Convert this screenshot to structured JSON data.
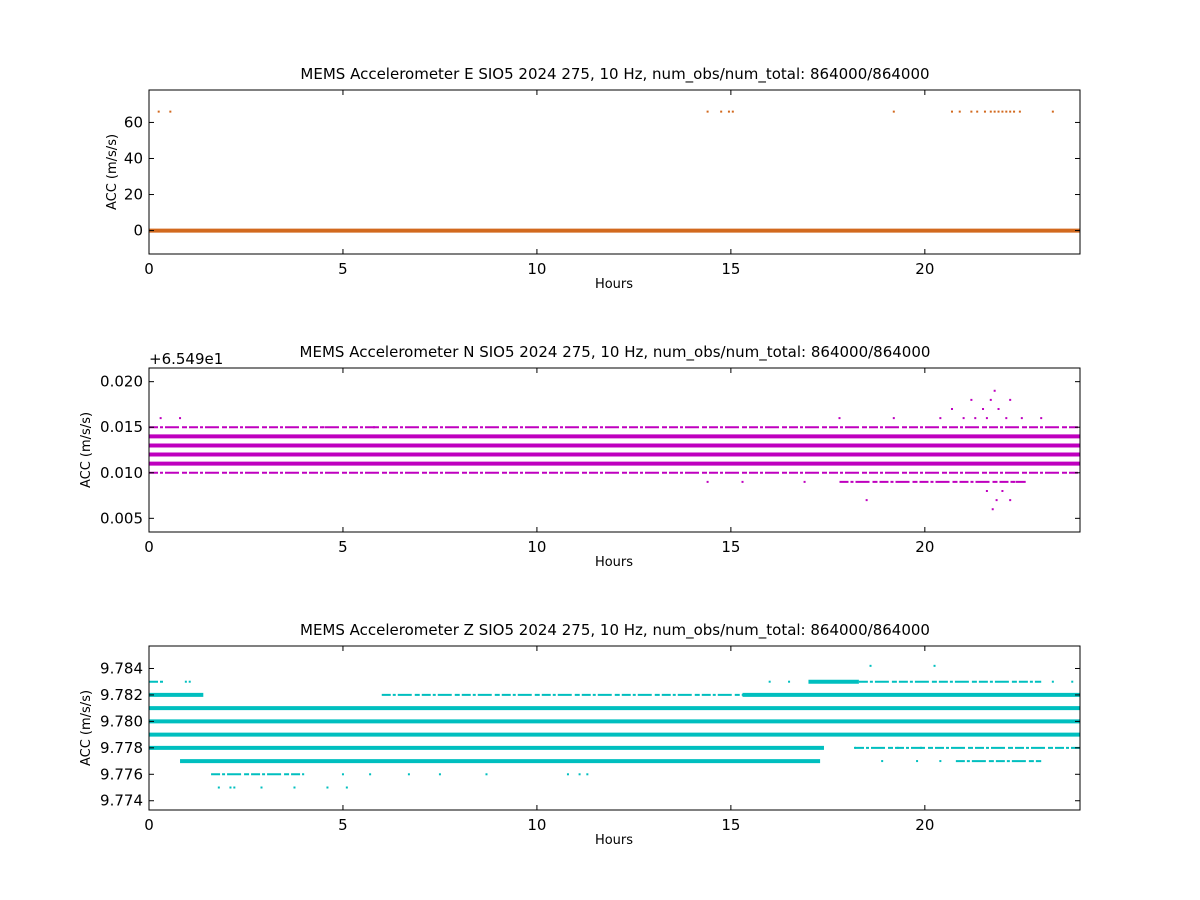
{
  "chart_data": [
    {
      "type": "scatter",
      "title": "MEMS Accelerometer E SIO5 2024 275, 10 Hz, num_obs/num_total: 864000/864000",
      "xlabel": "Hours",
      "ylabel": "ACC (m/s/s)",
      "xlim": [
        0,
        24
      ],
      "ylim": [
        -13,
        78
      ],
      "x_ticks": [
        0,
        5,
        10,
        15,
        20
      ],
      "y_ticks": [
        0,
        20,
        40,
        60
      ],
      "y_tick_labels": [
        "0",
        "20",
        "40",
        "60"
      ],
      "color": "#d2691e",
      "grid": false,
      "bands": [
        {
          "y": 0,
          "x_start": 0,
          "x_end": 24
        }
      ],
      "points": [
        {
          "x": 0.25,
          "y": 66
        },
        {
          "x": 0.55,
          "y": 66
        },
        {
          "x": 14.4,
          "y": 66
        },
        {
          "x": 14.75,
          "y": 66
        },
        {
          "x": 14.95,
          "y": 66
        },
        {
          "x": 15.05,
          "y": 66
        },
        {
          "x": 19.2,
          "y": 66
        },
        {
          "x": 20.7,
          "y": 66
        },
        {
          "x": 20.9,
          "y": 66
        },
        {
          "x": 21.2,
          "y": 66
        },
        {
          "x": 21.35,
          "y": 66
        },
        {
          "x": 21.55,
          "y": 66
        },
        {
          "x": 21.7,
          "y": 66
        },
        {
          "x": 21.8,
          "y": 66
        },
        {
          "x": 21.9,
          "y": 66
        },
        {
          "x": 22.0,
          "y": 66
        },
        {
          "x": 22.1,
          "y": 66
        },
        {
          "x": 22.2,
          "y": 66
        },
        {
          "x": 22.3,
          "y": 66
        },
        {
          "x": 22.45,
          "y": 66
        },
        {
          "x": 23.3,
          "y": 66
        }
      ]
    },
    {
      "type": "scatter",
      "title": "MEMS Accelerometer N SIO5 2024 275, 10 Hz, num_obs/num_total: 864000/864000",
      "xlabel": "Hours",
      "ylabel": "ACC (m/s/s)",
      "y_offset_label": "+6.549e1",
      "xlim": [
        0,
        24
      ],
      "ylim": [
        0.0035,
        0.0215
      ],
      "x_ticks": [
        0,
        5,
        10,
        15,
        20
      ],
      "y_ticks": [
        0.005,
        0.01,
        0.015,
        0.02
      ],
      "y_tick_labels": [
        "0.005",
        "0.010",
        "0.015",
        "0.020"
      ],
      "color": "#bf00bf",
      "grid": false,
      "bands": [
        {
          "y": 0.011,
          "x_start": 0,
          "x_end": 24
        },
        {
          "y": 0.012,
          "x_start": 0,
          "x_end": 24
        },
        {
          "y": 0.013,
          "x_start": 0,
          "x_end": 24
        },
        {
          "y": 0.014,
          "x_start": 0,
          "x_end": 24
        },
        {
          "y": 0.01,
          "x_start": 0,
          "x_end": 24,
          "dashed": true
        },
        {
          "y": 0.015,
          "x_start": 0,
          "x_end": 24,
          "dashed": true
        },
        {
          "y": 0.009,
          "x_start": 17.8,
          "x_end": 22.6,
          "dashed": true
        }
      ],
      "points": [
        {
          "x": 0.3,
          "y": 0.016
        },
        {
          "x": 0.8,
          "y": 0.016
        },
        {
          "x": 4.5,
          "y": 0.015
        },
        {
          "x": 5.8,
          "y": 0.015
        },
        {
          "x": 14.4,
          "y": 0.009
        },
        {
          "x": 15.3,
          "y": 0.009
        },
        {
          "x": 16.9,
          "y": 0.009
        },
        {
          "x": 17.8,
          "y": 0.016
        },
        {
          "x": 18.5,
          "y": 0.007
        },
        {
          "x": 19.2,
          "y": 0.016
        },
        {
          "x": 20.4,
          "y": 0.016
        },
        {
          "x": 20.7,
          "y": 0.017
        },
        {
          "x": 21.0,
          "y": 0.016
        },
        {
          "x": 21.2,
          "y": 0.018
        },
        {
          "x": 21.3,
          "y": 0.016
        },
        {
          "x": 21.5,
          "y": 0.017
        },
        {
          "x": 21.7,
          "y": 0.018
        },
        {
          "x": 21.75,
          "y": 0.006
        },
        {
          "x": 21.8,
          "y": 0.019
        },
        {
          "x": 21.85,
          "y": 0.007
        },
        {
          "x": 21.9,
          "y": 0.017
        },
        {
          "x": 22.0,
          "y": 0.008
        },
        {
          "x": 22.1,
          "y": 0.016
        },
        {
          "x": 22.2,
          "y": 0.018
        },
        {
          "x": 22.2,
          "y": 0.007
        },
        {
          "x": 22.5,
          "y": 0.016
        },
        {
          "x": 23.0,
          "y": 0.016
        },
        {
          "x": 21.6,
          "y": 0.008
        },
        {
          "x": 21.6,
          "y": 0.016
        },
        {
          "x": 22.3,
          "y": 0.009
        }
      ]
    },
    {
      "type": "scatter",
      "title": "MEMS Accelerometer Z SIO5 2024 275, 10 Hz, num_obs/num_total: 864000/864000",
      "xlabel": "Hours",
      "ylabel": "ACC (m/s/s)",
      "xlim": [
        0,
        24
      ],
      "ylim": [
        9.7733,
        9.7857
      ],
      "x_ticks": [
        0,
        5,
        10,
        15,
        20
      ],
      "y_ticks": [
        9.774,
        9.776,
        9.778,
        9.78,
        9.782,
        9.784
      ],
      "y_tick_labels": [
        "9.774",
        "9.776",
        "9.778",
        "9.780",
        "9.782",
        "9.784"
      ],
      "color": "#00bfbf",
      "grid": false,
      "bands": [
        {
          "y": 9.779,
          "x_start": 0,
          "x_end": 24
        },
        {
          "y": 9.78,
          "x_start": 0,
          "x_end": 24
        },
        {
          "y": 9.781,
          "x_start": 0,
          "x_end": 24
        },
        {
          "y": 9.778,
          "x_start": 0,
          "x_end": 17.4
        },
        {
          "y": 9.777,
          "x_start": 0.8,
          "x_end": 17.3
        },
        {
          "y": 9.782,
          "x_start": 0,
          "x_end": 1.4
        },
        {
          "y": 9.782,
          "x_start": 15.3,
          "x_end": 24
        },
        {
          "y": 9.783,
          "x_start": 17.0,
          "x_end": 18.3
        },
        {
          "y": 9.783,
          "x_start": 0,
          "x_end": 0.4,
          "dashed": true
        },
        {
          "y": 9.776,
          "x_start": 1.6,
          "x_end": 4.0,
          "dashed": true
        },
        {
          "y": 9.778,
          "x_start": 18.2,
          "x_end": 24,
          "dashed": true
        },
        {
          "y": 9.777,
          "x_start": 20.8,
          "x_end": 23.0,
          "dashed": true
        },
        {
          "y": 9.782,
          "x_start": 6.0,
          "x_end": 15.3,
          "dashed": true
        },
        {
          "y": 9.783,
          "x_start": 18.3,
          "x_end": 23.0,
          "dashed": true
        }
      ],
      "points": [
        {
          "x": 0.95,
          "y": 9.783
        },
        {
          "x": 1.05,
          "y": 9.783
        },
        {
          "x": 1.8,
          "y": 9.775
        },
        {
          "x": 2.1,
          "y": 9.775
        },
        {
          "x": 2.2,
          "y": 9.775
        },
        {
          "x": 2.9,
          "y": 9.775
        },
        {
          "x": 3.75,
          "y": 9.775
        },
        {
          "x": 4.6,
          "y": 9.775
        },
        {
          "x": 5.1,
          "y": 9.775
        },
        {
          "x": 5.0,
          "y": 9.776
        },
        {
          "x": 5.7,
          "y": 9.776
        },
        {
          "x": 6.7,
          "y": 9.776
        },
        {
          "x": 7.5,
          "y": 9.776
        },
        {
          "x": 8.7,
          "y": 9.776
        },
        {
          "x": 10.8,
          "y": 9.776
        },
        {
          "x": 11.1,
          "y": 9.776
        },
        {
          "x": 11.3,
          "y": 9.776
        },
        {
          "x": 16.0,
          "y": 9.783
        },
        {
          "x": 16.5,
          "y": 9.783
        },
        {
          "x": 18.6,
          "y": 9.7842
        },
        {
          "x": 20.25,
          "y": 9.7842
        },
        {
          "x": 23.3,
          "y": 9.783
        },
        {
          "x": 23.8,
          "y": 9.783
        },
        {
          "x": 18.2,
          "y": 9.778
        },
        {
          "x": 19.3,
          "y": 9.778
        },
        {
          "x": 19.9,
          "y": 9.778
        },
        {
          "x": 18.9,
          "y": 9.777
        },
        {
          "x": 19.8,
          "y": 9.777
        },
        {
          "x": 20.4,
          "y": 9.777
        }
      ]
    }
  ]
}
